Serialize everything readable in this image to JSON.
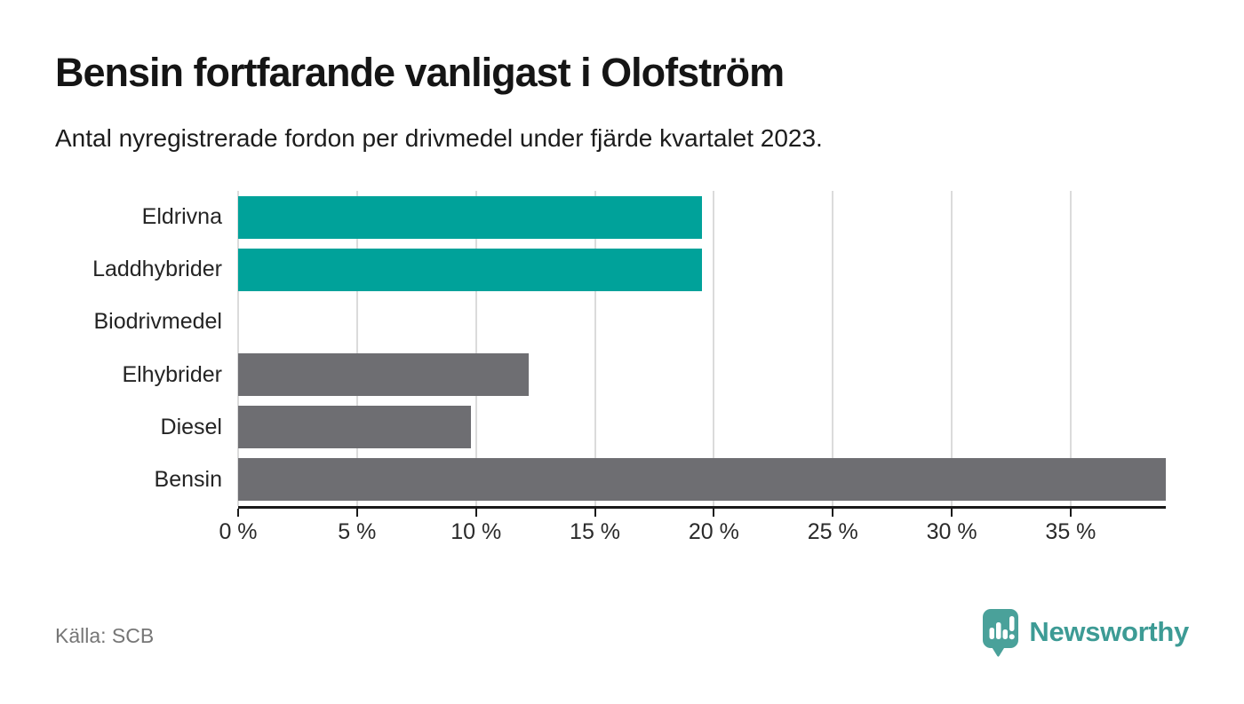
{
  "header": {
    "title": "Bensin fortfarande vanligast i Olofström",
    "subtitle": "Antal nyregistrerade fordon per drivmedel under fjärde kvartalet 2023."
  },
  "chart_data": {
    "type": "bar",
    "orientation": "horizontal",
    "title": "Bensin fortfarande vanligast i Olofström",
    "subtitle": "Antal nyregistrerade fordon per drivmedel under fjärde kvartalet 2023.",
    "categories": [
      "Eldrivna",
      "Laddhybrider",
      "Biodrivmedel",
      "Elhybrider",
      "Diesel",
      "Bensin"
    ],
    "values": [
      19.5,
      19.5,
      0,
      12.2,
      9.8,
      39.0
    ],
    "unit": "%",
    "xlabel": "",
    "ylabel": "",
    "xlim": [
      0,
      39
    ],
    "xticks": [
      0,
      5,
      10,
      15,
      20,
      25,
      30,
      35
    ],
    "xtick_labels": [
      "0 %",
      "5 %",
      "10 %",
      "15 %",
      "20 %",
      "25 %",
      "30 %",
      "35 %"
    ],
    "bar_colors": [
      "#00a29a",
      "#00a29a",
      "#6e6e72",
      "#6e6e72",
      "#6e6e72",
      "#6e6e72"
    ],
    "highlight_color": "#00a29a",
    "default_color": "#6e6e72",
    "grid": "vertical-gridlines-on",
    "legend": "none"
  },
  "footer": {
    "source": "Källa: SCB",
    "logo_text": "Newsworthy",
    "logo_color": "#3d9b95",
    "logo_icon_color": "#4aa19a"
  }
}
